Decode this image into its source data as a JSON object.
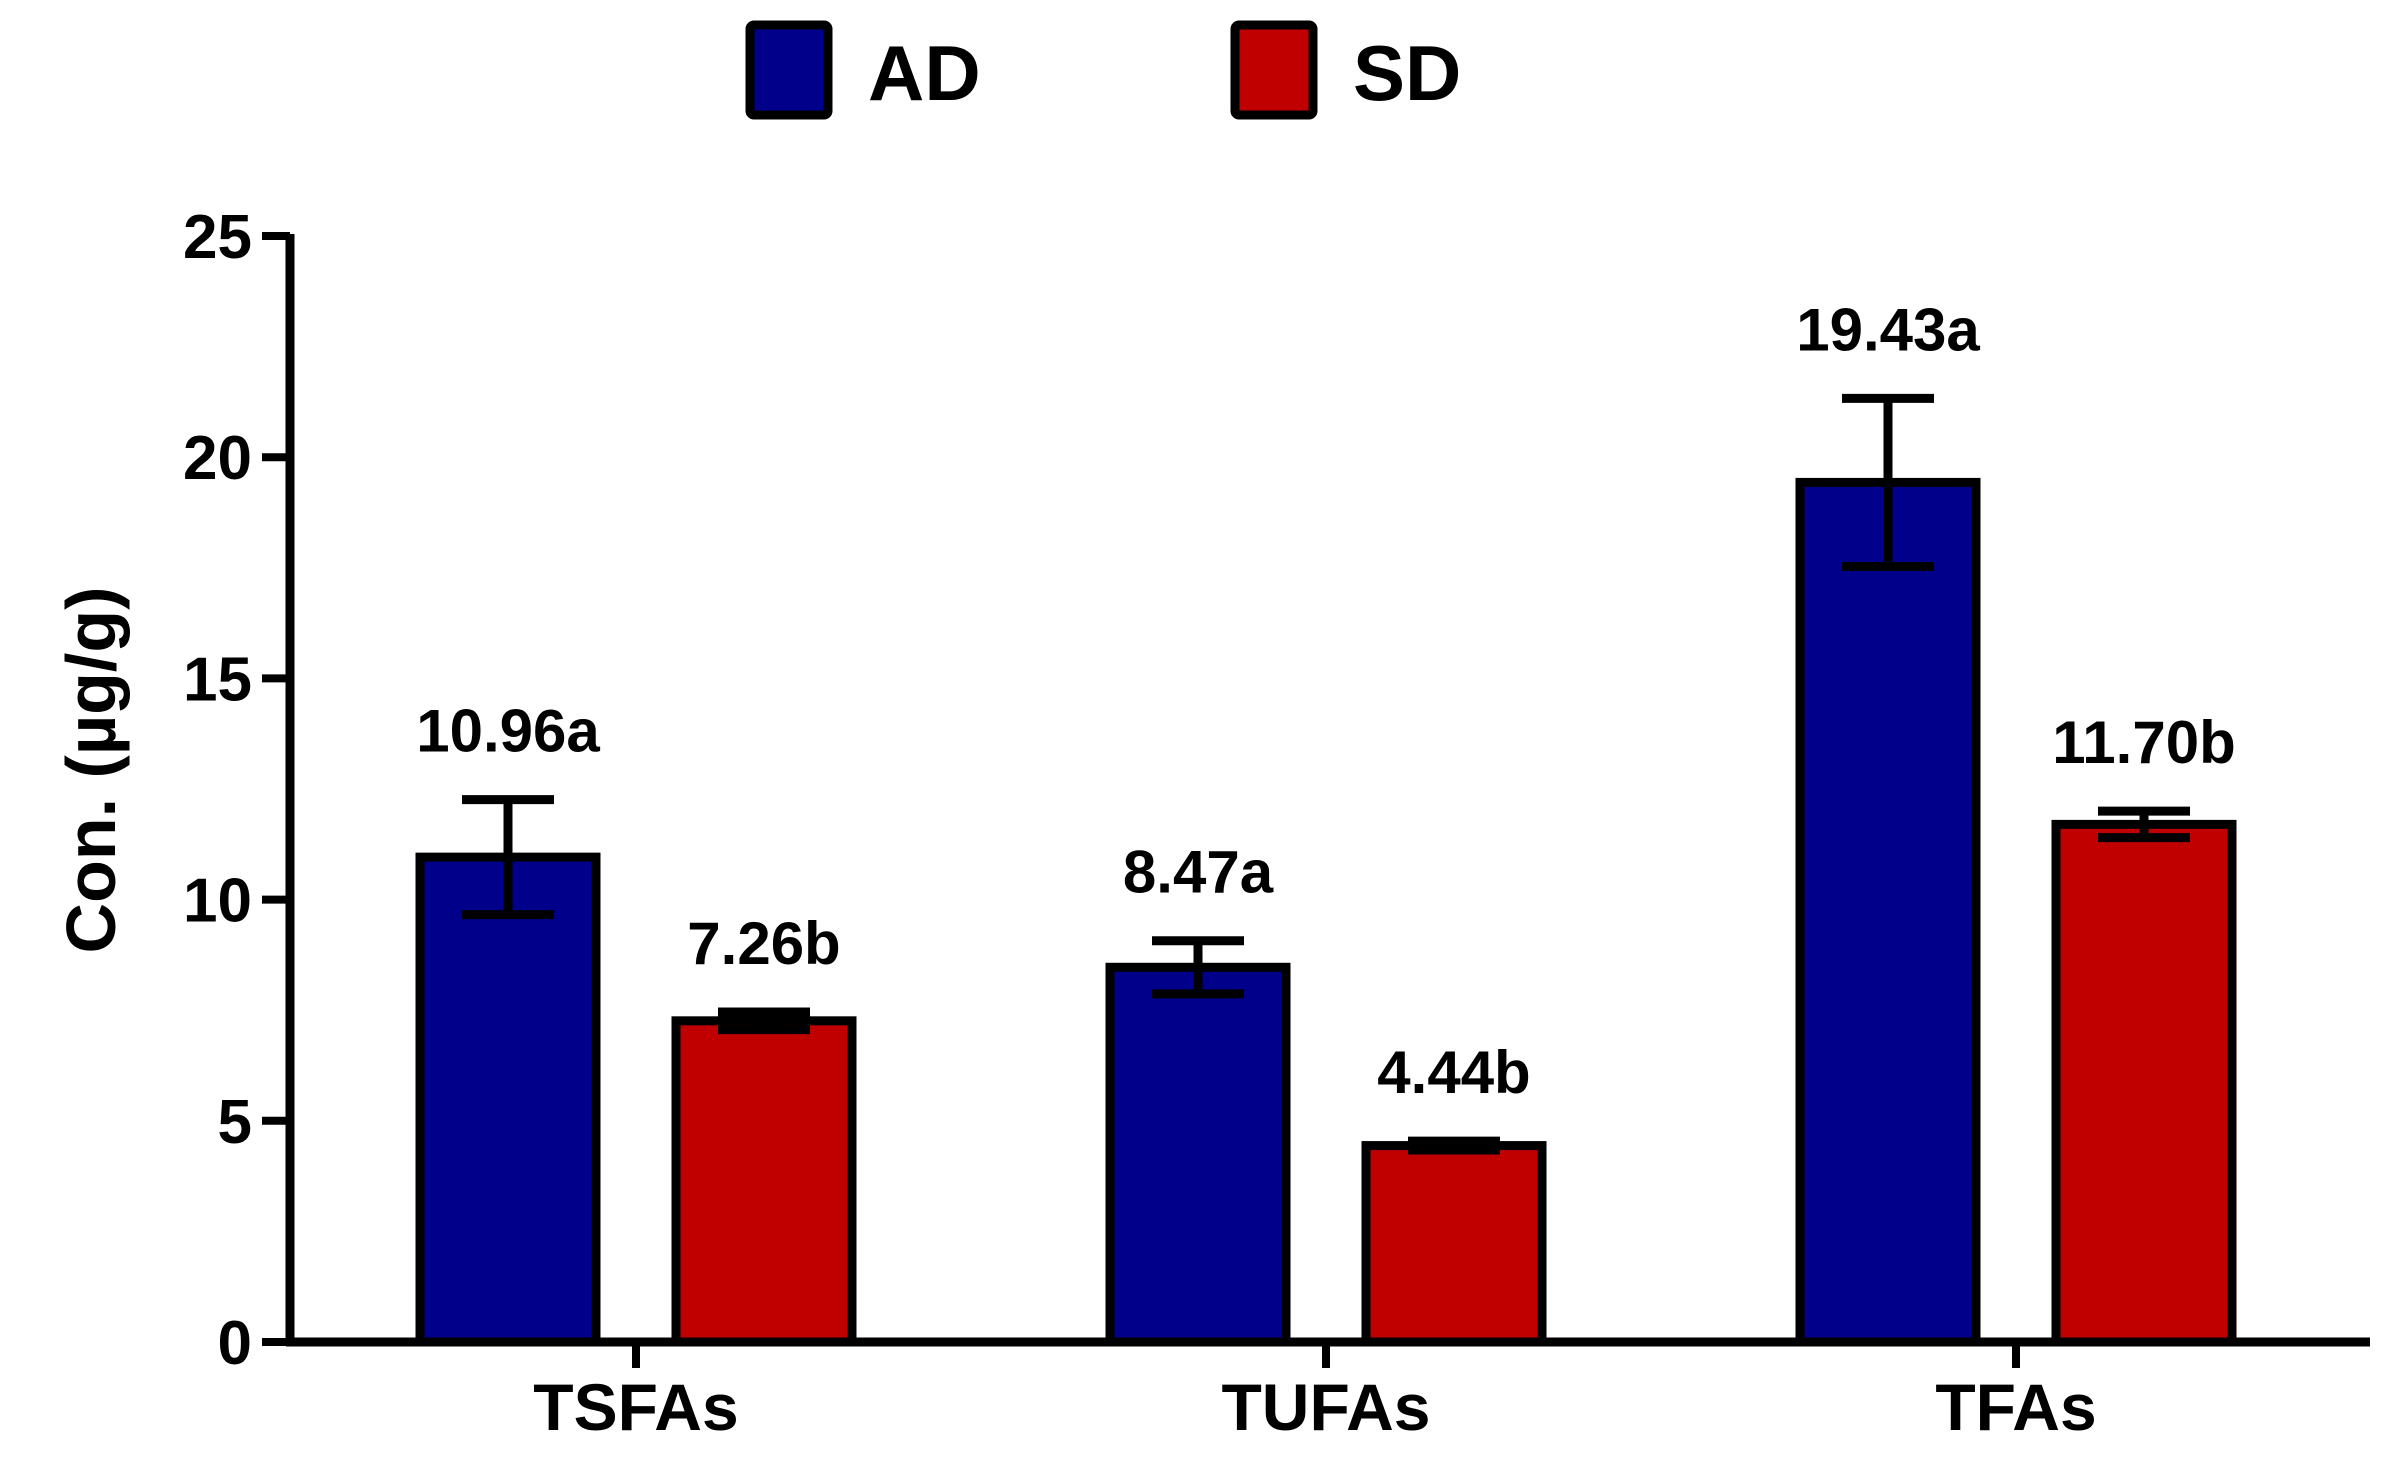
{
  "chart_data": {
    "type": "bar",
    "title": "",
    "xlabel": "",
    "ylabel": "Con. (µg/g)",
    "ylim": [
      0,
      25
    ],
    "yticks": [
      0,
      5,
      10,
      15,
      20,
      25
    ],
    "ytick_labels": [
      "0",
      "5",
      "10",
      "15",
      "20",
      "25"
    ],
    "categories": [
      "TSFAs",
      "TUFAs",
      "TFAs"
    ],
    "legend_position": "top-center",
    "grid": false,
    "series": [
      {
        "name": "AD",
        "color": "#00008B",
        "values": [
          10.96,
          8.47,
          19.43
        ],
        "errors": [
          1.3,
          0.6,
          1.9
        ],
        "labels": [
          "10.96a",
          "8.47a",
          "19.43a"
        ]
      },
      {
        "name": "SD",
        "color": "#C00000",
        "values": [
          7.26,
          4.44,
          11.7
        ],
        "errors": [
          0.2,
          0.1,
          0.3
        ],
        "labels": [
          "7.26b",
          "4.44b",
          "11.70b"
        ]
      }
    ]
  }
}
